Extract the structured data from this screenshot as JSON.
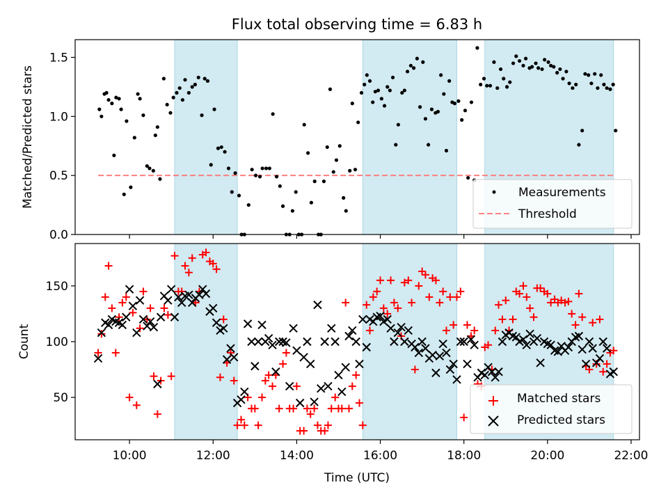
{
  "figure": {
    "title": "Flux total observing time = 6.83 h"
  },
  "chart_data": [
    {
      "type": "scatter",
      "title": "Flux total observing time = 6.83 h",
      "ylabel": "Matched/Predicted stars",
      "xlabel": "",
      "xlim": [
        8.7,
        22.2
      ],
      "ylim": [
        0,
        1.65
      ],
      "yticks": [
        0.0,
        0.5,
        1.0,
        1.5
      ],
      "ytick_labels": [
        "0.0",
        "0.5",
        "1.0",
        "1.5"
      ],
      "xticks": [
        10,
        12,
        14,
        16,
        18,
        20,
        22
      ],
      "grid": false,
      "legend_position": "lower-right",
      "shaded_intervals": [
        [
          11.08,
          12.58
        ],
        [
          15.58,
          17.83
        ],
        [
          18.5,
          21.58
        ]
      ],
      "shade_color": "#add8e6",
      "threshold": {
        "name": "Threshold",
        "value": 0.5,
        "x": [
          9.25,
          21.6
        ],
        "color": "#ff7f7f"
      },
      "series": [
        {
          "name": "Measurements",
          "color": "#000000",
          "marker": "dot",
          "x": [
            9.28,
            9.33,
            9.4,
            9.45,
            9.5,
            9.58,
            9.63,
            9.68,
            9.75,
            9.8,
            9.87,
            9.93,
            10.03,
            10.12,
            10.2,
            10.25,
            10.33,
            10.42,
            10.48,
            10.57,
            10.62,
            10.67,
            10.73,
            10.82,
            10.9,
            10.98,
            11.05,
            11.13,
            11.2,
            11.27,
            11.33,
            11.42,
            11.5,
            11.57,
            11.65,
            11.73,
            11.8,
            11.87,
            11.95,
            12.03,
            12.12,
            12.2,
            12.28,
            12.37,
            12.45,
            12.53,
            12.62,
            12.68,
            12.75,
            12.85,
            12.93,
            13.02,
            13.12,
            13.18,
            13.27,
            13.35,
            13.43,
            13.52,
            13.6,
            13.67,
            13.75,
            13.83,
            13.9,
            13.98,
            14.05,
            14.12,
            14.18,
            14.27,
            14.35,
            14.43,
            14.52,
            14.58,
            14.65,
            14.73,
            14.8,
            14.88,
            14.95,
            15.03,
            15.12,
            15.18,
            15.27,
            15.33,
            15.4,
            15.47,
            15.55,
            15.62,
            15.68,
            15.75,
            15.82,
            15.88,
            15.95,
            16.03,
            16.1,
            16.17,
            16.23,
            16.3,
            16.37,
            16.43,
            16.52,
            16.58,
            16.65,
            16.73,
            16.8,
            16.88,
            16.95,
            17.02,
            17.08,
            17.15,
            17.23,
            17.32,
            17.38,
            17.45,
            17.52,
            17.58,
            17.65,
            17.72,
            17.78,
            17.87,
            17.95,
            18.03,
            18.1,
            18.18,
            18.25,
            18.32,
            18.4,
            18.48,
            18.55,
            18.63,
            18.72,
            18.8,
            18.88,
            18.95,
            19.03,
            19.1,
            19.18,
            19.25,
            19.33,
            19.42,
            19.48,
            19.57,
            19.63,
            19.72,
            19.78,
            19.87,
            19.93,
            20.02,
            20.08,
            20.15,
            20.23,
            20.3,
            20.37,
            20.45,
            20.52,
            20.6,
            20.68,
            20.75,
            20.83,
            20.9,
            20.98,
            21.05,
            21.13,
            21.2,
            21.28,
            21.35,
            21.42,
            21.5,
            21.57,
            21.63
          ],
          "y": [
            1.06,
            1.0,
            1.19,
            1.2,
            1.14,
            1.11,
            0.67,
            1.16,
            1.15,
            1.06,
            0.34,
            0.96,
            0.4,
            0.82,
            1.19,
            1.15,
            1.01,
            0.58,
            0.56,
            0.54,
            0.84,
            0.91,
            0.47,
            1.32,
            1.1,
            1.03,
            1.16,
            1.2,
            1.24,
            1.14,
            1.31,
            1.2,
            1.25,
            1.27,
            1.33,
            1.01,
            1.32,
            1.3,
            0.59,
            1.06,
            0.73,
            0.74,
            0.7,
            0.56,
            0.36,
            0.52,
            0.33,
            0.0,
            0.0,
            0.25,
            0.55,
            0.5,
            0.49,
            0.56,
            0.56,
            0.56,
            1.02,
            0.49,
            0.41,
            0.24,
            0.0,
            0.0,
            0.2,
            0.36,
            0.0,
            0.0,
            0.93,
            0.69,
            0.27,
            0.45,
            0.0,
            0.0,
            0.45,
            0.74,
            1.23,
            0.53,
            0.63,
            0.75,
            0.31,
            0.2,
            0.54,
            1.11,
            0.55,
            0.95,
            1.2,
            1.27,
            1.35,
            1.3,
            1.12,
            1.21,
            1.22,
            1.15,
            1.09,
            1.25,
            1.22,
            1.33,
            0.76,
            0.93,
            1.2,
            1.22,
            1.38,
            1.43,
            1.41,
            1.49,
            1.08,
            1.46,
            0.98,
            0.76,
            1.06,
            1.03,
            1.04,
            1.35,
            1.19,
            0.71,
            1.3,
            1.12,
            1.11,
            1.13,
            0.97,
            1.05,
            0.48,
            1.12,
            0.46,
            1.58,
            1.27,
            1.32,
            1.26,
            1.26,
            1.46,
            1.24,
            1.4,
            1.32,
            1.25,
            1.29,
            1.45,
            1.51,
            1.47,
            1.43,
            1.49,
            1.41,
            1.42,
            1.45,
            1.41,
            1.4,
            1.48,
            1.46,
            1.43,
            1.42,
            1.37,
            1.4,
            1.32,
            1.38,
            1.28,
            1.24,
            1.27,
            0.76,
            0.88,
            1.36,
            1.35,
            1.28,
            1.36,
            1.24,
            1.35,
            1.27,
            1.24,
            1.23,
            1.27,
            0.88
          ]
        }
      ]
    },
    {
      "type": "scatter",
      "title": "",
      "xlabel": "Time (UTC)",
      "ylabel": "Count",
      "xlim": [
        8.7,
        22.2
      ],
      "ylim": [
        12,
        188
      ],
      "yticks": [
        50,
        100,
        150
      ],
      "xticks": [
        10,
        12,
        14,
        16,
        18,
        20,
        22
      ],
      "xtick_labels": [
        "10:00",
        "12:00",
        "14:00",
        "16:00",
        "18:00",
        "20:00",
        "22:00"
      ],
      "grid": false,
      "legend_position": "lower-right",
      "shaded_intervals": [
        [
          11.08,
          12.58
        ],
        [
          15.58,
          17.83
        ],
        [
          18.5,
          21.58
        ]
      ],
      "shade_color": "#add8e6",
      "series": [
        {
          "name": "Matched stars",
          "color": "#ff0000",
          "marker": "plus",
          "x": [
            9.25,
            9.33,
            9.42,
            9.5,
            9.58,
            9.67,
            9.75,
            9.83,
            9.92,
            10.0,
            10.08,
            10.17,
            10.25,
            10.33,
            10.42,
            10.5,
            10.58,
            10.67,
            10.75,
            10.83,
            10.92,
            11.0,
            11.08,
            11.17,
            11.25,
            11.33,
            11.42,
            11.5,
            11.58,
            11.67,
            11.75,
            11.83,
            11.92,
            12.0,
            12.08,
            12.17,
            12.25,
            12.33,
            12.42,
            12.5,
            12.58,
            12.67,
            12.75,
            12.83,
            12.92,
            13.0,
            13.08,
            13.17,
            13.25,
            13.33,
            13.42,
            13.5,
            13.58,
            13.67,
            13.75,
            13.83,
            13.92,
            14.0,
            14.08,
            14.17,
            14.25,
            14.33,
            14.42,
            14.5,
            14.58,
            14.67,
            14.75,
            14.83,
            14.92,
            15.0,
            15.08,
            15.17,
            15.25,
            15.33,
            15.42,
            15.5,
            15.58,
            15.67,
            15.75,
            15.83,
            15.92,
            16.0,
            16.08,
            16.17,
            16.25,
            16.33,
            16.42,
            16.5,
            16.58,
            16.67,
            16.75,
            16.83,
            16.92,
            17.0,
            17.08,
            17.17,
            17.25,
            17.33,
            17.42,
            17.5,
            17.58,
            17.67,
            17.75,
            17.83,
            17.92,
            18.0,
            18.08,
            18.17,
            18.25,
            18.33,
            18.42,
            18.5,
            18.58,
            18.67,
            18.75,
            18.83,
            18.92,
            19.0,
            19.08,
            19.17,
            19.25,
            19.33,
            19.42,
            19.5,
            19.58,
            19.67,
            19.75,
            19.83,
            19.92,
            20.0,
            20.08,
            20.17,
            20.25,
            20.33,
            20.42,
            20.5,
            20.58,
            20.67,
            20.75,
            20.83,
            20.92,
            21.0,
            21.08,
            21.17,
            21.25,
            21.33,
            21.42,
            21.5,
            21.58
          ],
          "y": [
            90,
            107,
            140,
            168,
            130,
            90,
            122,
            135,
            140,
            50,
            126,
            43,
            112,
            145,
            120,
            130,
            69,
            35,
            65,
            130,
            124,
            69,
            177,
            145,
            145,
            168,
            162,
            175,
            135,
            145,
            178,
            180,
            172,
            170,
            165,
            68,
            120,
            81,
            90,
            65,
            25,
            30,
            25,
            50,
            40,
            40,
            25,
            50,
            65,
            70,
            60,
            70,
            40,
            80,
            90,
            40,
            40,
            60,
            20,
            20,
            40,
            35,
            40,
            25,
            20,
            20,
            25,
            40,
            50,
            40,
            40,
            135,
            40,
            60,
            70,
            45,
            25,
            133,
            110,
            140,
            145,
            155,
            130,
            125,
            155,
            135,
            130,
            105,
            153,
            155,
            135,
            75,
            150,
            163,
            160,
            140,
            157,
            155,
            135,
            145,
            110,
            140,
            115,
            140,
            145,
            32,
            115,
            105,
            110,
            62,
            60,
            95,
            97,
            75,
            110,
            133,
            120,
            137,
            110,
            120,
            145,
            143,
            150,
            140,
            130,
            122,
            148,
            148,
            145,
            143,
            135,
            138,
            135,
            137,
            135,
            136,
            125,
            115,
            143,
            122,
            78,
            75,
            117,
            80,
            120,
            73,
            80,
            90,
            92
          ]
        },
        {
          "name": "Predicted stars",
          "color": "#000000",
          "marker": "x",
          "x": [
            9.25,
            9.33,
            9.42,
            9.5,
            9.58,
            9.67,
            9.75,
            9.83,
            9.92,
            10.0,
            10.08,
            10.17,
            10.25,
            10.33,
            10.42,
            10.5,
            10.58,
            10.67,
            10.75,
            10.83,
            10.92,
            11.0,
            11.08,
            11.17,
            11.25,
            11.33,
            11.42,
            11.5,
            11.58,
            11.67,
            11.75,
            11.83,
            11.92,
            12.0,
            12.08,
            12.17,
            12.25,
            12.33,
            12.42,
            12.5,
            12.58,
            12.67,
            12.75,
            12.83,
            12.92,
            13.0,
            13.08,
            13.17,
            13.25,
            13.33,
            13.42,
            13.5,
            13.58,
            13.67,
            13.75,
            13.83,
            13.92,
            14.0,
            14.08,
            14.17,
            14.25,
            14.33,
            14.42,
            14.5,
            14.58,
            14.67,
            14.75,
            14.83,
            14.92,
            15.0,
            15.08,
            15.17,
            15.25,
            15.33,
            15.42,
            15.5,
            15.58,
            15.67,
            15.75,
            15.83,
            15.92,
            16.0,
            16.08,
            16.17,
            16.25,
            16.33,
            16.42,
            16.5,
            16.58,
            16.67,
            16.75,
            16.83,
            16.92,
            17.0,
            17.08,
            17.17,
            17.25,
            17.33,
            17.42,
            17.5,
            17.58,
            17.67,
            17.75,
            17.83,
            17.92,
            18.0,
            18.08,
            18.17,
            18.25,
            18.33,
            18.42,
            18.5,
            18.58,
            18.67,
            18.75,
            18.83,
            18.92,
            19.0,
            19.08,
            19.17,
            19.25,
            19.33,
            19.42,
            19.5,
            19.58,
            19.67,
            19.75,
            19.83,
            19.92,
            20.0,
            20.08,
            20.17,
            20.25,
            20.33,
            20.42,
            20.5,
            20.58,
            20.67,
            20.75,
            20.83,
            20.92,
            21.0,
            21.08,
            21.17,
            21.25,
            21.33,
            21.42,
            21.5,
            21.58
          ],
          "y": [
            85,
            108,
            117,
            115,
            120,
            118,
            117,
            115,
            122,
            147,
            132,
            108,
            137,
            120,
            114,
            118,
            113,
            62,
            122,
            141,
            137,
            147,
            122,
            140,
            135,
            141,
            142,
            135,
            139,
            142,
            147,
            143,
            127,
            130,
            117,
            110,
            112,
            84,
            94,
            86,
            45,
            48,
            55,
            116,
            100,
            78,
            100,
            115,
            100,
            103,
            97,
            73,
            100,
            100,
            99,
            60,
            112,
            92,
            45,
            86,
            100,
            80,
            46,
            133,
            58,
            100,
            60,
            112,
            100,
            70,
            55,
            77,
            105,
            110,
            100,
            80,
            120,
            95,
            120,
            118,
            122,
            123,
            118,
            120,
            112,
            100,
            108,
            113,
            100,
            110,
            98,
            95,
            90,
            100,
            94,
            85,
            88,
            72,
            87,
            98,
            90,
            75,
            80,
            66,
            100,
            100,
            80,
            102,
            97,
            68,
            72,
            70,
            77,
            73,
            68,
            73,
            100,
            106,
            108,
            105,
            104,
            100,
            102,
            97,
            107,
            100,
            103,
            81,
            100,
            98,
            97,
            92,
            91,
            96,
            92,
            95,
            100,
            104,
            105,
            93,
            80,
            100,
            94,
            81,
            85,
            100,
            94,
            71,
            73
          ]
        }
      ]
    }
  ]
}
